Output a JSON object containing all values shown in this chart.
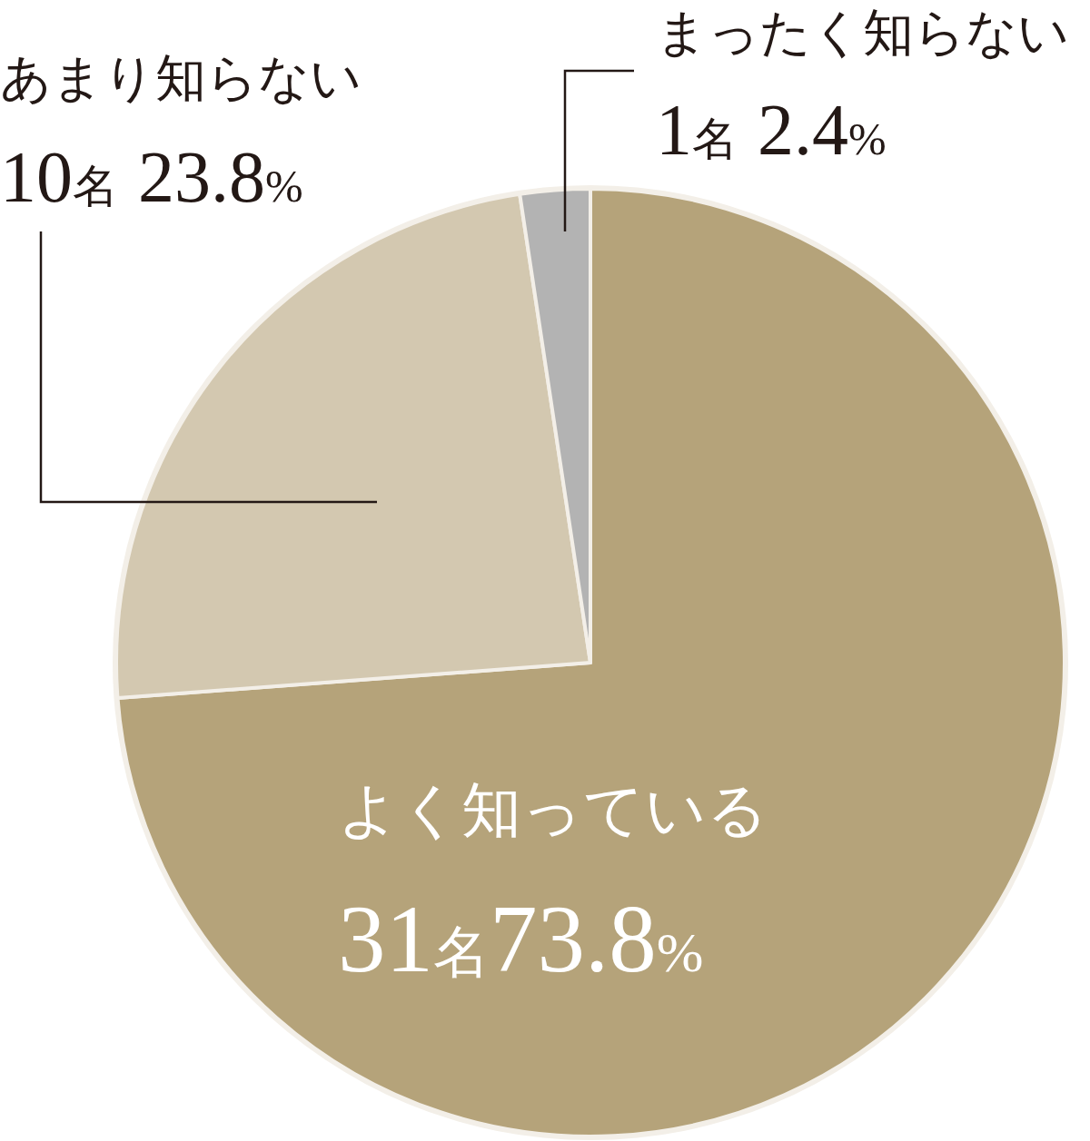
{
  "chart_data": {
    "type": "pie",
    "categories": [
      "よく知っている",
      "あまり知らない",
      "まったく知らない"
    ],
    "values": [
      31,
      10,
      1
    ],
    "colors": [
      "#b5a37a",
      "#d3c8b0",
      "#b3b3b3"
    ],
    "value_labels": [
      "31名73.8%",
      "10名23.8%",
      "1名2.4%"
    ]
  }
}
